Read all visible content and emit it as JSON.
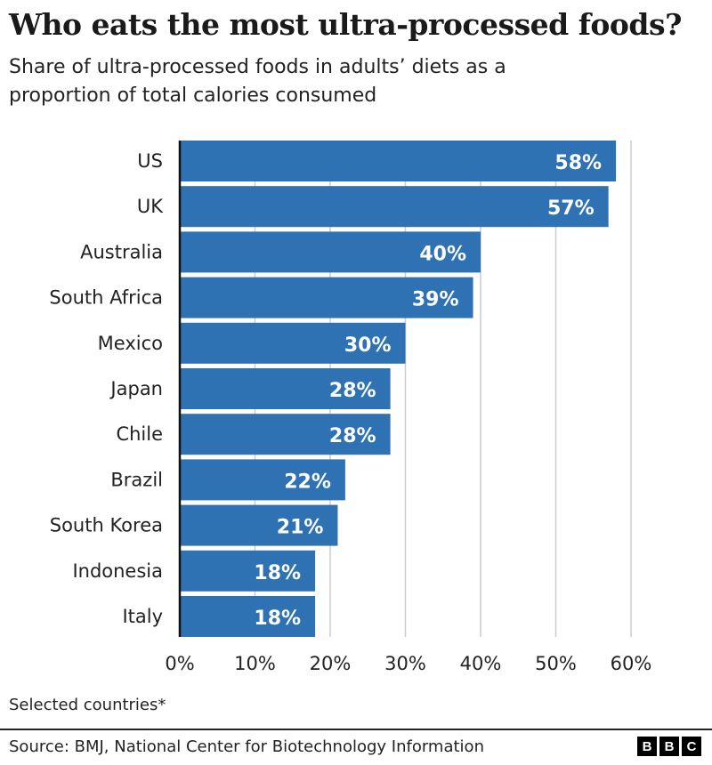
{
  "chart_data": {
    "type": "bar",
    "orientation": "horizontal",
    "title": "Who eats the most ultra-processed foods?",
    "subtitle": "Share of ultra-processed foods in adults’ diets as a proportion of total calories consumed",
    "categories": [
      "US",
      "UK",
      "Australia",
      "South Africa",
      "Mexico",
      "Japan",
      "Chile",
      "Brazil",
      "South Korea",
      "Indonesia",
      "Italy"
    ],
    "values": [
      58,
      57,
      40,
      39,
      30,
      28,
      28,
      22,
      21,
      18,
      18
    ],
    "data_labels": [
      "58%",
      "57%",
      "40%",
      "39%",
      "30%",
      "28%",
      "28%",
      "22%",
      "21%",
      "18%",
      "18%"
    ],
    "xlim": [
      0,
      60
    ],
    "xticks": [
      0,
      10,
      20,
      30,
      40,
      50,
      60
    ],
    "xtick_labels": [
      "0%",
      "10%",
      "20%",
      "30%",
      "40%",
      "50%",
      "60%"
    ],
    "xlabel": "",
    "ylabel": "",
    "grid": true,
    "bar_color": "#2e72b4",
    "note": "Selected countries*",
    "source": "Source: BMJ, National Center for Biotechnology Information",
    "logo": [
      "B",
      "B",
      "C"
    ]
  }
}
